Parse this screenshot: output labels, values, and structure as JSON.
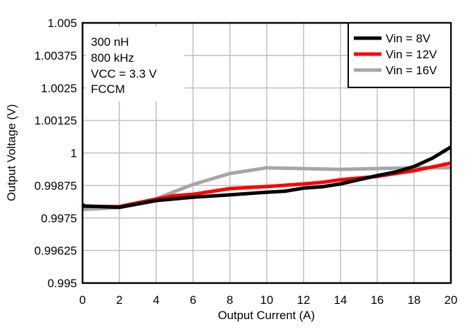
{
  "chart_data": {
    "type": "line",
    "title": "",
    "xlabel": "Output Current (A)",
    "ylabel": "Output Voltage (V)",
    "xlim": [
      0,
      20
    ],
    "ylim": [
      0.995,
      1.005
    ],
    "grid": true,
    "legend_placement": "top-right",
    "x_ticks": [
      "0",
      "2",
      "4",
      "6",
      "8",
      "10",
      "12",
      "14",
      "16",
      "18",
      "20"
    ],
    "y_ticks": [
      "0.995",
      "0.99625",
      "0.9975",
      "0.99875",
      "1",
      "1.00125",
      "1.0025",
      "1.00375",
      "1.005"
    ],
    "annotation": [
      "300 nH",
      "800 kHz",
      "VCC = 3.3 V",
      "FCCM"
    ],
    "series": [
      {
        "name": "Vin = 8V",
        "color": "#000000",
        "x": [
          0,
          1,
          2,
          4,
          6,
          8,
          10,
          11,
          12,
          13,
          14,
          16,
          17,
          18,
          19,
          20
        ],
        "y": [
          0.99796,
          0.99794,
          0.99791,
          0.99817,
          0.9983,
          0.99839,
          0.99849,
          0.99853,
          0.99865,
          0.9987,
          0.99881,
          0.99913,
          0.99927,
          0.99948,
          0.9998,
          1.00023
        ]
      },
      {
        "name": "Vin = 12V",
        "color": "#ff0000",
        "x": [
          0,
          0.1,
          1,
          2,
          4,
          5,
          6,
          8,
          10,
          12,
          13,
          14,
          16,
          18,
          20
        ],
        "y": [
          0.99804,
          0.99796,
          0.99794,
          0.99794,
          0.99823,
          0.99836,
          0.99841,
          0.99863,
          0.99871,
          0.99881,
          0.99887,
          0.99897,
          0.9991,
          0.99932,
          0.99961
        ]
      },
      {
        "name": "Vin = 16V",
        "color": "#a6a6a6",
        "x": [
          0,
          1,
          2,
          4,
          5,
          6,
          8,
          9,
          10,
          12,
          14,
          16,
          18,
          20
        ],
        "y": [
          0.99783,
          0.99786,
          0.99791,
          0.99823,
          0.99852,
          0.99879,
          0.99921,
          0.99932,
          0.99943,
          0.9994,
          0.99937,
          0.9994,
          0.99943,
          0.99943
        ]
      }
    ]
  }
}
